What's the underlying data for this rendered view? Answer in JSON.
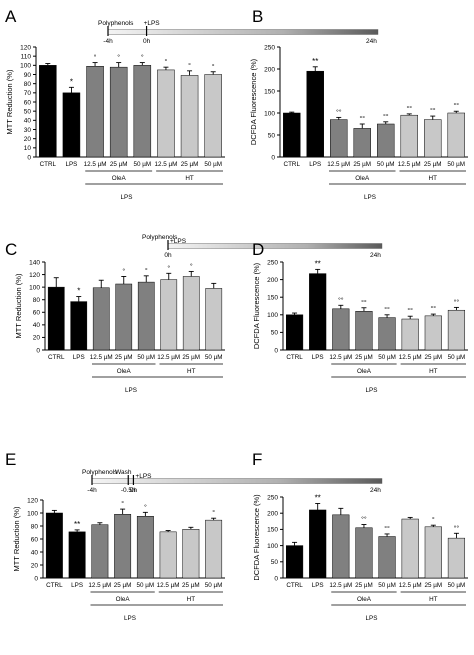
{
  "panels": [
    {
      "letter": "A",
      "timeline": {
        "labels": [
          {
            "text": "Polyphenols",
            "t": -4,
            "row": "top"
          },
          {
            "text": "+LPS",
            "t": 0,
            "row": "top"
          },
          {
            "text": "-4h",
            "t": -4,
            "row": "bottom"
          },
          {
            "text": "0h",
            "t": 0,
            "row": "bottom"
          },
          {
            "text": "24h",
            "t": 24,
            "row": "bottom"
          }
        ],
        "ticks": [
          -4,
          0
        ]
      }
    },
    {
      "letter": "B",
      "timeline": {
        "labels": [
          {
            "text": "24h",
            "t": 24,
            "row": "bottom"
          }
        ],
        "ticks": []
      }
    },
    {
      "letter": "C",
      "timeline": {
        "labels": [
          {
            "text": "Polyphenols",
            "t": 0,
            "row": "top"
          },
          {
            "text": "+LPS",
            "t": 0,
            "row": "top2"
          },
          {
            "text": "0h",
            "t": 0,
            "row": "bottom"
          },
          {
            "text": "24h",
            "t": 24,
            "row": "bottom"
          }
        ],
        "ticks": [
          0
        ]
      }
    },
    {
      "letter": "D",
      "timeline": {
        "labels": [
          {
            "text": "24h",
            "t": 24,
            "row": "bottom"
          }
        ],
        "ticks": []
      }
    },
    {
      "letter": "E",
      "timeline": {
        "labels": [
          {
            "text": "Polyphenols",
            "t": -4,
            "row": "top"
          },
          {
            "text": "Wash",
            "t": -0.5,
            "row": "top"
          },
          {
            "text": "+LPS",
            "t": 0,
            "row": "top2"
          },
          {
            "text": "-4h",
            "t": -4,
            "row": "bottom"
          },
          {
            "text": "-0.5h",
            "t": -0.5,
            "row": "bottom"
          },
          {
            "text": "0h",
            "t": 0,
            "row": "bottom"
          },
          {
            "text": "24h",
            "t": 24,
            "row": "bottom"
          }
        ],
        "ticks": [
          -4,
          -0.5,
          0
        ]
      }
    },
    {
      "letter": "F",
      "timeline": {
        "labels": [
          {
            "text": "24h",
            "t": 24,
            "row": "bottom"
          }
        ],
        "ticks": []
      }
    }
  ],
  "chart_data": [
    {
      "panel": "A",
      "type": "bar",
      "ylabel": "MTT Reduction (%)",
      "ylim": [
        0,
        120
      ],
      "yticks": [
        0,
        10,
        20,
        30,
        40,
        50,
        60,
        70,
        80,
        90,
        100,
        110,
        120
      ],
      "categories": [
        "CTRL",
        "LPS",
        "12.5 µM",
        "25 µM",
        "50 µM",
        "12.5 µM",
        "25 µM",
        "50 µM"
      ],
      "values": [
        100,
        70,
        99,
        98,
        100,
        95,
        89,
        90
      ],
      "errors": [
        2,
        6,
        4,
        5,
        3,
        3,
        5,
        3
      ],
      "annotations": [
        "",
        "*",
        "°",
        "°",
        "°",
        "°",
        "°",
        "°"
      ],
      "bar_colors": [
        "#000000",
        "#000000",
        "#808080",
        "#808080",
        "#808080",
        "#c8c8c8",
        "#c8c8c8",
        "#c8c8c8"
      ],
      "groups": [
        {
          "label": "OleA",
          "from": 2,
          "to": 4
        },
        {
          "label": "HT",
          "from": 5,
          "to": 7
        }
      ],
      "bottom_label": "LPS"
    },
    {
      "panel": "B",
      "type": "bar",
      "ylabel": "DCFDA Fluorescence (%)",
      "ylim": [
        0,
        250
      ],
      "yticks": [
        0,
        50,
        100,
        150,
        200,
        250
      ],
      "categories": [
        "CTRL",
        "LPS",
        "12.5 µM",
        "25 µM",
        "50 µM",
        "12.5 µM",
        "25 µM",
        "50 µM"
      ],
      "values": [
        100,
        195,
        85,
        65,
        75,
        95,
        85,
        100
      ],
      "errors": [
        2,
        10,
        5,
        10,
        5,
        3,
        8,
        4
      ],
      "annotations": [
        "",
        "**",
        "°°",
        "°°",
        "°°",
        "°°",
        "°°",
        "°°"
      ],
      "bar_colors": [
        "#000000",
        "#000000",
        "#808080",
        "#808080",
        "#808080",
        "#c8c8c8",
        "#c8c8c8",
        "#c8c8c8"
      ],
      "groups": [
        {
          "label": "OleA",
          "from": 2,
          "to": 4
        },
        {
          "label": "HT",
          "from": 5,
          "to": 7
        }
      ],
      "bottom_label": "LPS"
    },
    {
      "panel": "C",
      "type": "bar",
      "ylabel": "MTT Reduction (%)",
      "ylim": [
        0,
        140
      ],
      "yticks": [
        0,
        20,
        40,
        60,
        80,
        100,
        120,
        140
      ],
      "categories": [
        "CTRL",
        "LPS",
        "12.5 µM",
        "25 µM",
        "50 µM",
        "12.5 µM",
        "25 µM",
        "50 µM"
      ],
      "values": [
        100,
        77,
        99,
        105,
        108,
        112,
        117,
        98
      ],
      "errors": [
        15,
        8,
        12,
        12,
        10,
        10,
        8,
        8
      ],
      "annotations": [
        "",
        "*",
        "",
        "°",
        "°",
        "°",
        "°",
        ""
      ],
      "bar_colors": [
        "#000000",
        "#000000",
        "#808080",
        "#808080",
        "#808080",
        "#c8c8c8",
        "#c8c8c8",
        "#c8c8c8"
      ],
      "groups": [
        {
          "label": "OleA",
          "from": 2,
          "to": 4
        },
        {
          "label": "HT",
          "from": 5,
          "to": 7
        }
      ],
      "bottom_label": "LPS"
    },
    {
      "panel": "D",
      "type": "bar",
      "ylabel": "DCFDA Fluorescence (%)",
      "ylim": [
        0,
        250
      ],
      "yticks": [
        0,
        50,
        100,
        150,
        200,
        250
      ],
      "categories": [
        "CTRL",
        "LPS",
        "12.5 µM",
        "25 µM",
        "50 µM",
        "12.5 µM",
        "25 µM",
        "50 µM"
      ],
      "values": [
        100,
        217,
        117,
        110,
        92,
        88,
        97,
        113
      ],
      "errors": [
        5,
        12,
        10,
        10,
        8,
        8,
        5,
        8
      ],
      "annotations": [
        "",
        "**",
        "°°",
        "°°",
        "°°",
        "°°",
        "°°",
        "°°"
      ],
      "bar_colors": [
        "#000000",
        "#000000",
        "#808080",
        "#808080",
        "#808080",
        "#c8c8c8",
        "#c8c8c8",
        "#c8c8c8"
      ],
      "groups": [
        {
          "label": "OleA",
          "from": 2,
          "to": 4
        },
        {
          "label": "HT",
          "from": 5,
          "to": 7
        }
      ],
      "bottom_label": "LPS"
    },
    {
      "panel": "E",
      "type": "bar",
      "ylabel": "MTT Reduction (%)",
      "ylim": [
        0,
        120
      ],
      "yticks": [
        0,
        20,
        40,
        60,
        80,
        100,
        120
      ],
      "categories": [
        "CTRL",
        "LPS",
        "12.5 µM",
        "25 µM",
        "50 µM",
        "12.5 µM",
        "25 µM",
        "50 µM"
      ],
      "values": [
        100,
        71,
        82,
        98,
        95,
        71,
        75,
        89
      ],
      "errors": [
        4,
        3,
        3,
        8,
        6,
        2,
        3,
        3
      ],
      "annotations": [
        "",
        "**",
        "",
        "°",
        "°",
        "",
        "",
        "°"
      ],
      "bar_colors": [
        "#000000",
        "#000000",
        "#808080",
        "#808080",
        "#808080",
        "#c8c8c8",
        "#c8c8c8",
        "#c8c8c8"
      ],
      "groups": [
        {
          "label": "OleA",
          "from": 2,
          "to": 4
        },
        {
          "label": "HT",
          "from": 5,
          "to": 7
        }
      ],
      "bottom_label": "LPS"
    },
    {
      "panel": "F",
      "type": "bar",
      "ylabel": "DCFDA Fluorescence (%)",
      "ylim": [
        0,
        250
      ],
      "yticks": [
        0,
        50,
        100,
        150,
        200,
        250
      ],
      "categories": [
        "CTRL",
        "LPS",
        "12.5 µM",
        "25 µM",
        "50 µM",
        "12.5 µM",
        "25 µM",
        "50 µM"
      ],
      "values": [
        100,
        210,
        195,
        155,
        128,
        182,
        158,
        123
      ],
      "errors": [
        10,
        20,
        20,
        10,
        8,
        5,
        5,
        15
      ],
      "annotations": [
        "",
        "**",
        "",
        "°°",
        "°°",
        "",
        "°",
        "°°"
      ],
      "bar_colors": [
        "#000000",
        "#000000",
        "#808080",
        "#808080",
        "#808080",
        "#c8c8c8",
        "#c8c8c8",
        "#c8c8c8"
      ],
      "groups": [
        {
          "label": "OleA",
          "from": 2,
          "to": 4
        },
        {
          "label": "HT",
          "from": 5,
          "to": 7
        }
      ],
      "bottom_label": "LPS"
    }
  ]
}
